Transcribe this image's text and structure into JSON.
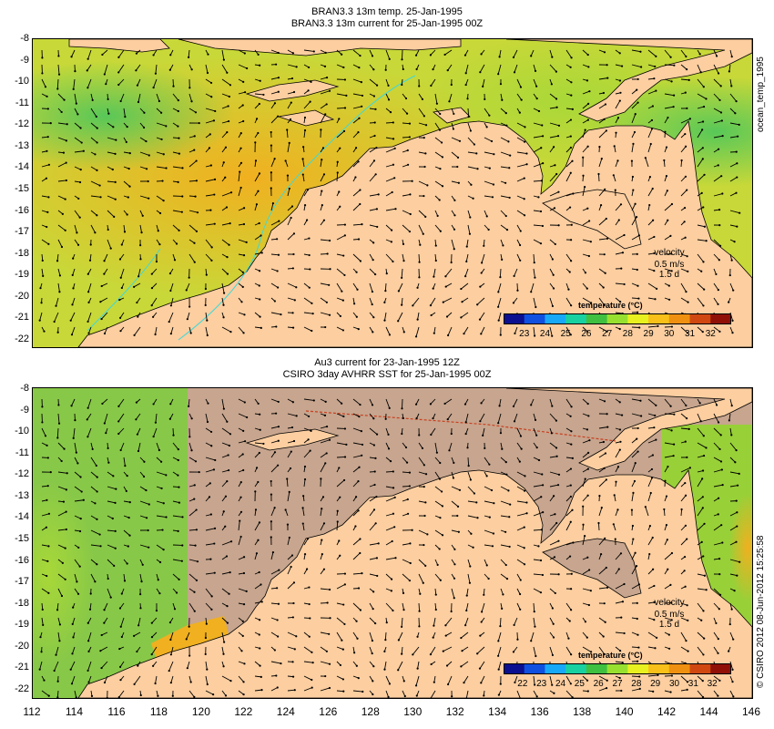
{
  "panel1": {
    "title_line1": "BRAN3.3 13m temp. 25-Jan-1995",
    "title_line2": "BRAN3.3 13m current for 25-Jan-1995 00Z",
    "side_label": "ocean_temp_1995",
    "velocity": {
      "label": "velocity",
      "speed": "0.5 m/s",
      "duration": "1.5 d"
    },
    "colorbar": {
      "title": "temperature (°C)",
      "ticks": [
        "23",
        "24",
        "25",
        "26",
        "27",
        "28",
        "29",
        "30",
        "31",
        "32"
      ]
    }
  },
  "panel2": {
    "title_line1": "Au3 current for 23-Jan-1995 12Z",
    "title_line2": "CSIRO 3day AVHRR SST for 25-Jan-1995 00Z",
    "velocity": {
      "label": "velocity",
      "speed": "0.5 m/s",
      "duration": "1.5 d"
    },
    "colorbar": {
      "title": "temperature (°C)",
      "ticks": [
        "22",
        "23",
        "24",
        "25",
        "26",
        "27",
        "28",
        "29",
        "30",
        "31",
        "32"
      ]
    }
  },
  "credit": "© CSIRO 2012  08-Jun-2012 15:25:58",
  "axes": {
    "lat_ticks": [
      "-8",
      "-9",
      "-10",
      "-11",
      "-12",
      "-13",
      "-14",
      "-15",
      "-16",
      "-17",
      "-18",
      "-19",
      "-20",
      "-21",
      "-22"
    ],
    "lon_ticks": [
      "112",
      "114",
      "116",
      "118",
      "120",
      "122",
      "124",
      "126",
      "128",
      "130",
      "132",
      "134",
      "136",
      "138",
      "140",
      "142",
      "144",
      "146"
    ]
  },
  "colors": {
    "land": "#fccea0",
    "no_data": "#c7a58e",
    "ocean_warm": "#f0b020",
    "ocean_mid": "#a8d838",
    "ocean_cool": "#58c858",
    "colorbar_stops": [
      "#0a1090",
      "#1050e0",
      "#18a8f8",
      "#18d0a0",
      "#40c040",
      "#98e030",
      "#e8f020",
      "#f8c018",
      "#f09010",
      "#d04810",
      "#901008"
    ]
  }
}
